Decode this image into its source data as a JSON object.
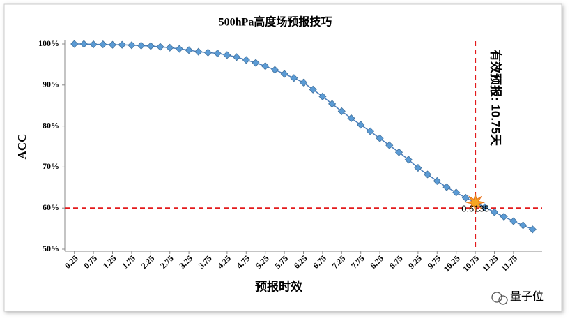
{
  "chart_data": {
    "type": "line",
    "title": "500hPa高度场预报技巧",
    "x_label": "预报时效",
    "y_label": "ACC",
    "x": [
      0.25,
      0.5,
      0.75,
      1.0,
      1.25,
      1.5,
      1.75,
      2.0,
      2.25,
      2.5,
      2.75,
      3.0,
      3.25,
      3.5,
      3.75,
      4.0,
      4.25,
      4.5,
      4.75,
      5.0,
      5.25,
      5.5,
      5.75,
      6.0,
      6.25,
      6.5,
      6.75,
      7.0,
      7.25,
      7.5,
      7.75,
      8.0,
      8.25,
      8.5,
      8.75,
      9.0,
      9.25,
      9.5,
      9.75,
      10.0,
      10.25,
      10.5,
      10.75,
      11.0,
      11.25,
      11.5,
      11.75,
      12.0,
      12.25
    ],
    "series": [
      {
        "color": "#5b9bd5",
        "values": [
          100.0,
          100.0,
          99.9,
          99.9,
          99.8,
          99.8,
          99.7,
          99.6,
          99.5,
          99.3,
          99.1,
          98.8,
          98.5,
          98.1,
          97.9,
          97.7,
          97.3,
          96.8,
          96.1,
          95.4,
          94.6,
          93.7,
          92.7,
          91.7,
          90.6,
          88.9,
          87.2,
          85.4,
          83.6,
          81.9,
          80.3,
          78.7,
          77.0,
          75.3,
          73.6,
          71.8,
          69.8,
          68.2,
          66.6,
          65.1,
          63.8,
          62.5,
          61.35,
          60.2,
          59.0,
          57.9,
          56.8,
          55.8,
          54.8
        ]
      }
    ],
    "xlim": [
      0.0,
      12.5
    ],
    "xticks": [
      0.25,
      0.75,
      1.25,
      1.75,
      2.25,
      2.75,
      3.25,
      3.75,
      4.25,
      4.75,
      5.25,
      5.75,
      6.25,
      6.75,
      7.25,
      7.75,
      8.25,
      8.75,
      9.25,
      9.75,
      10.25,
      10.75,
      11.25,
      11.75
    ],
    "ylim": [
      50,
      100
    ],
    "yticks": [
      {
        "value": 50,
        "label": "50%"
      },
      {
        "value": 60,
        "label": "60%"
      },
      {
        "value": 70,
        "label": "70%"
      },
      {
        "value": 80,
        "label": "80%"
      },
      {
        "value": 90,
        "label": "90%"
      },
      {
        "value": 100,
        "label": "100%"
      }
    ],
    "reference_lines": {
      "color": "#e31a1c",
      "x": 10.75,
      "y": 60
    },
    "highlight": {
      "x": 10.75,
      "y": 61.35,
      "label": "0.6135"
    },
    "annotation": "有效预报: 10.75天",
    "watermark": "量子位"
  }
}
